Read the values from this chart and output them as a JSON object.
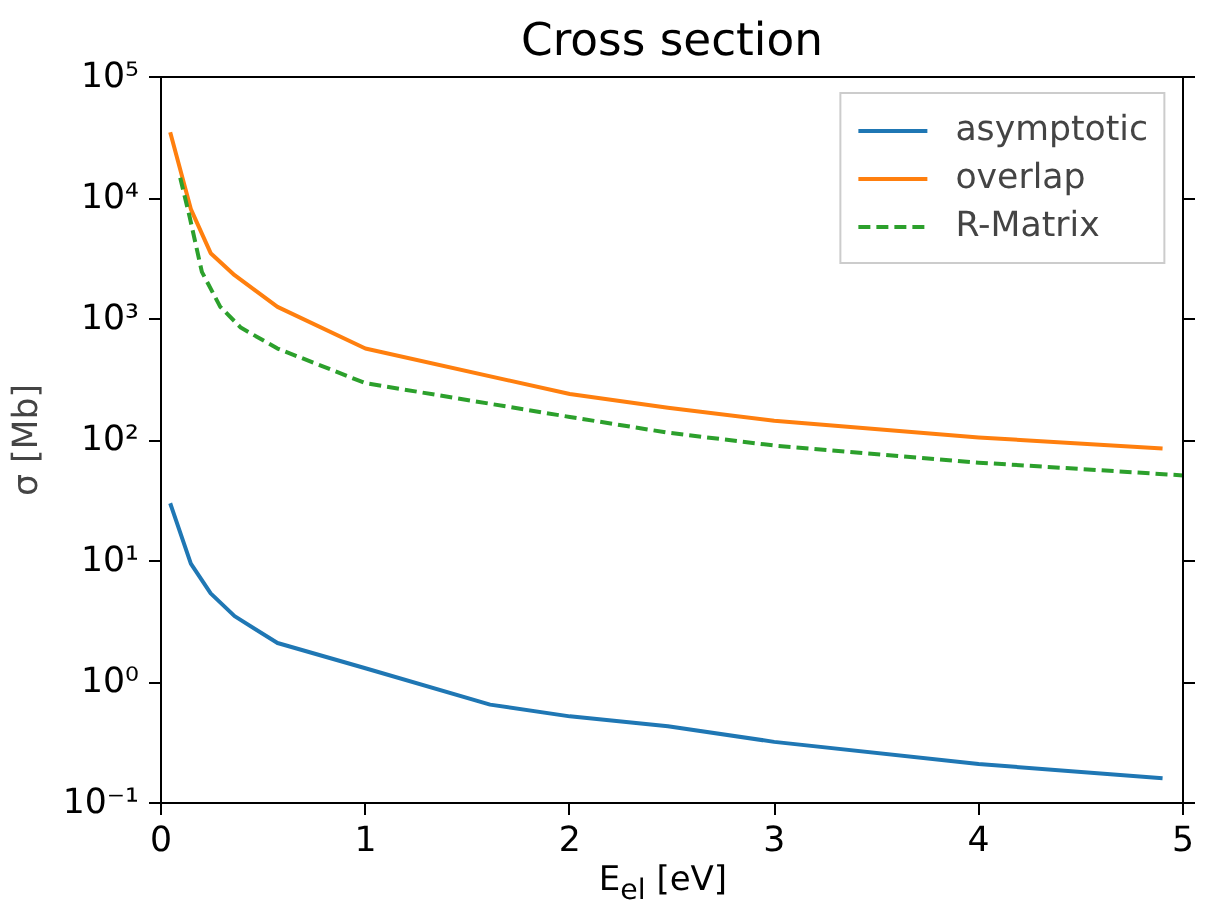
{
  "chart_data": {
    "type": "line",
    "title": "Cross section",
    "xlabel": "E$_{el}$ [eV]",
    "ylabel": "σ [Mb]",
    "log": "y",
    "grid": false,
    "legend": "top right",
    "xlim": [
      0,
      5
    ],
    "ylim": [
      0.1,
      100000
    ],
    "xticks": [
      0,
      1,
      2,
      3,
      4,
      5
    ],
    "yticks": [
      {
        "value": 0.1,
        "label": "10⁻¹"
      },
      {
        "value": 1,
        "label": "10⁰"
      },
      {
        "value": 10,
        "label": "10¹"
      },
      {
        "value": 100,
        "label": "10²"
      },
      {
        "value": 1000,
        "label": "10³"
      },
      {
        "value": 10000,
        "label": "10⁴"
      },
      {
        "value": 100000,
        "label": "10⁵"
      }
    ],
    "series": [
      {
        "name": "asymptotic",
        "color": "#1f77b4",
        "line_style": "solid",
        "x": [
          0.045,
          0.146,
          0.243,
          0.36,
          0.57,
          1.0,
          1.61,
          2.0,
          2.48,
          3.0,
          4.0,
          4.9
        ],
        "values": [
          30,
          9.5,
          5.4,
          3.5,
          2.1,
          1.3,
          0.65,
          0.52,
          0.43,
          0.32,
          0.21,
          0.16
        ]
      },
      {
        "name": "overlap",
        "color": "#ff7f0e",
        "line_style": "solid",
        "x": [
          0.045,
          0.146,
          0.243,
          0.36,
          0.57,
          1.0,
          2.0,
          2.48,
          3.0,
          4.0,
          4.9
        ],
        "values": [
          35000,
          8100,
          3500,
          2300,
          1260,
          570,
          240,
          185,
          144,
          105,
          85
        ]
      },
      {
        "name": "R-Matrix",
        "color": "#2ca02c",
        "line_style": "dashed",
        "x": [
          0.094,
          0.14,
          0.2,
          0.29,
          0.39,
          0.57,
          1.0,
          2.0,
          2.48,
          3.0,
          4.0,
          5.0
        ],
        "values": [
          14700,
          7000,
          2450,
          1260,
          850,
          570,
          295,
          155,
          115,
          90,
          65,
          51
        ]
      }
    ]
  }
}
